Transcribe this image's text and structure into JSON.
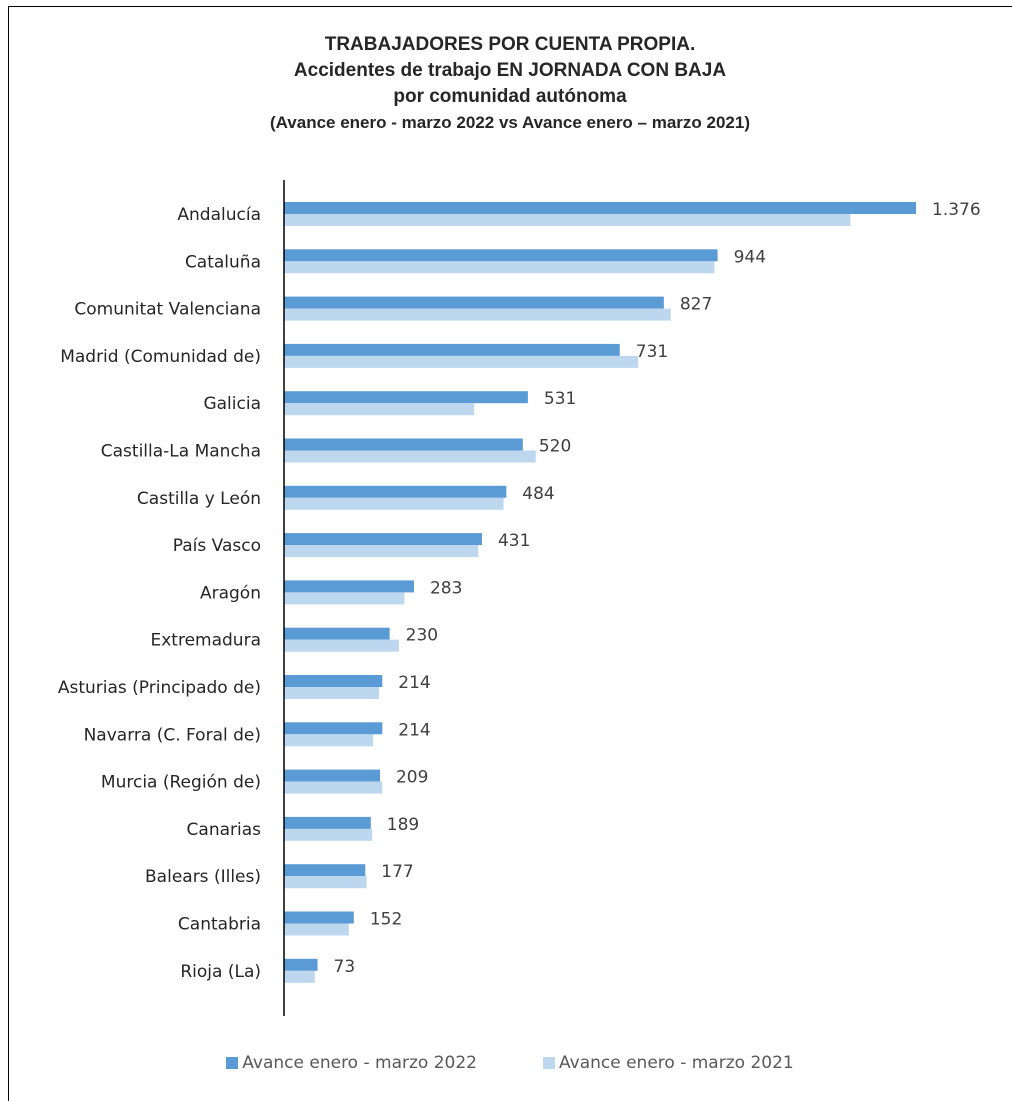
{
  "chart_data": {
    "type": "bar",
    "orientation": "horizontal",
    "title": "TRABAJADORES POR CUENTA PROPIA.",
    "title_lines": [
      "TRABAJADORES POR CUENTA PROPIA.",
      "Accidentes de trabajo EN JORNADA CON BAJA",
      "por comunidad autónoma"
    ],
    "subtitle": "(Avance enero - marzo 2022 vs Avance enero – marzo 2021)",
    "categories": [
      "Andalucía",
      "Cataluña",
      "Comunitat Valenciana",
      "Madrid (Comunidad de)",
      "Galicia",
      "Castilla-La Mancha",
      "Castilla y León",
      "País Vasco",
      "Aragón",
      "Extremadura",
      "Asturias (Principado de)",
      "Navarra (C. Foral de)",
      "Murcia (Región de)",
      "Canarias",
      "Balears (Illes)",
      "Cantabria",
      "Rioja (La)"
    ],
    "series": [
      {
        "name": "Avance enero - marzo 2022",
        "color": "#5b9bd5",
        "values": [
          1376,
          944,
          827,
          731,
          531,
          520,
          484,
          431,
          283,
          230,
          214,
          214,
          209,
          189,
          177,
          152,
          73
        ],
        "labels": [
          "1.376",
          "944",
          "827",
          "731",
          "531",
          "520",
          "484",
          "431",
          "283",
          "230",
          "214",
          "214",
          "209",
          "189",
          "177",
          "152",
          "73"
        ]
      },
      {
        "name": "Avance enero - marzo 2021",
        "color": "#bdd7ee",
        "values": [
          1233,
          937,
          842,
          771,
          414,
          548,
          478,
          423,
          262,
          250,
          207,
          194,
          214,
          192,
          180,
          141,
          67
        ]
      }
    ],
    "xlim": [
      0,
      1376
    ],
    "grid": false,
    "legend_position": "bottom"
  }
}
